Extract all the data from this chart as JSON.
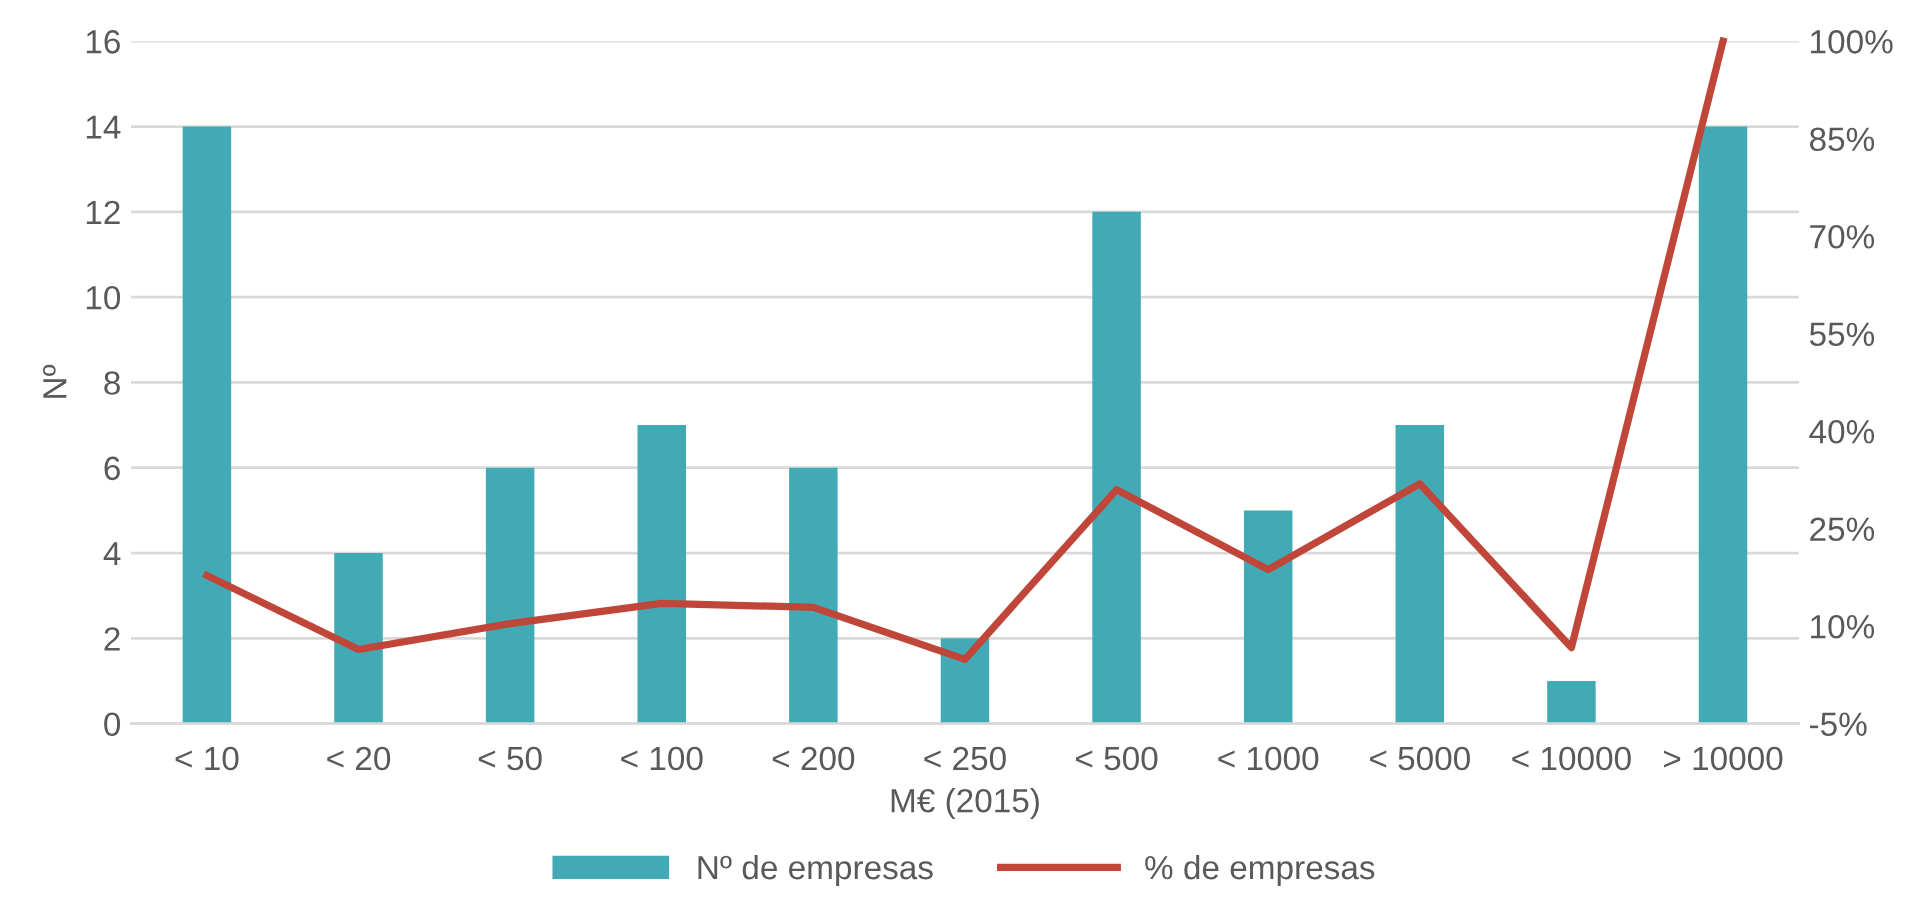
{
  "chart_data": {
    "type": "bar",
    "xlabel": "M€ (2015)",
    "ylabel": "Nº",
    "categories": [
      "< 10",
      "< 20",
      "< 50",
      "< 100",
      "< 200",
      "< 250",
      "< 500",
      "< 1000",
      "< 5000",
      "< 10000",
      "> 10000"
    ],
    "series": [
      {
        "name": "Nº de empresas",
        "color": "#42aab5",
        "values": [
          14,
          4,
          6,
          7,
          6,
          2,
          12,
          5,
          7,
          1,
          14
        ]
      },
      {
        "name": "% de empresas",
        "type": "line",
        "axis": "y2",
        "color": "#c0463a",
        "values": [
          17.8,
          6.4,
          10.4,
          13.5,
          12.9,
          4.9,
          31.0,
          18.7,
          31.9,
          6.7,
          100
        ]
      }
    ],
    "ylim": [
      0,
      16
    ],
    "yticks": [
      0,
      2,
      4,
      6,
      8,
      10,
      12,
      14,
      16
    ],
    "y2lim": [
      -5,
      100
    ],
    "y2ticks": [
      {
        "value": -5,
        "label": "-5%"
      },
      {
        "value": 10,
        "label": "10%"
      },
      {
        "value": 25,
        "label": "25%"
      },
      {
        "value": 40,
        "label": "40%"
      },
      {
        "value": 55,
        "label": "55%"
      },
      {
        "value": 70,
        "label": "70%"
      },
      {
        "value": 85,
        "label": "85%"
      },
      {
        "value": 100,
        "label": "100%"
      }
    ],
    "grid": "y",
    "legend": "bottom",
    "marker": "none",
    "line_style": "solid"
  }
}
